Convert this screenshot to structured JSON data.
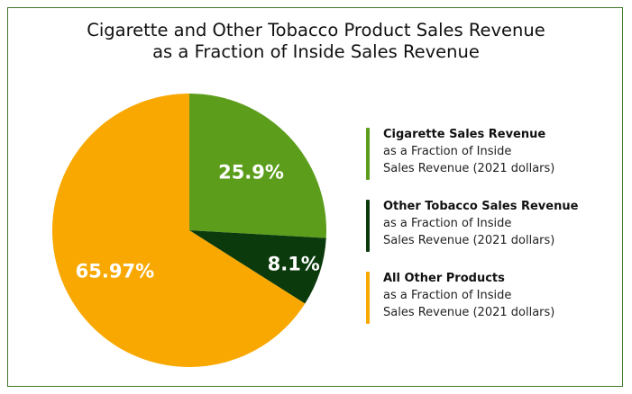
{
  "chart_data": {
    "type": "pie",
    "title_line1": "Cigarette and Other Tobacco Product Sales Revenue",
    "title_line2": "as a Fraction of Inside Sales Revenue",
    "slices": [
      {
        "label": "25.9%",
        "value": 25.9,
        "color": "#5c9e1c",
        "legend_line1": "Cigarette Sales Revenue",
        "legend_line2": "as a Fraction of Inside",
        "legend_line3": "Sales Revenue (2021 dollars)"
      },
      {
        "label": "8.1%",
        "value": 8.1,
        "color": "#0b3a0c",
        "legend_line1": "Other Tobacco Sales Revenue",
        "legend_line2": "as a Fraction of Inside",
        "legend_line3": "Sales Revenue (2021 dollars)"
      },
      {
        "label": "65.97%",
        "value": 65.97,
        "color": "#f8a800",
        "legend_line1": "All Other Products",
        "legend_line2": "as a Fraction of Inside",
        "legend_line3": "Sales Revenue (2021 dollars)"
      }
    ],
    "legend_position": "right",
    "border_color": "#3f7a2a"
  }
}
